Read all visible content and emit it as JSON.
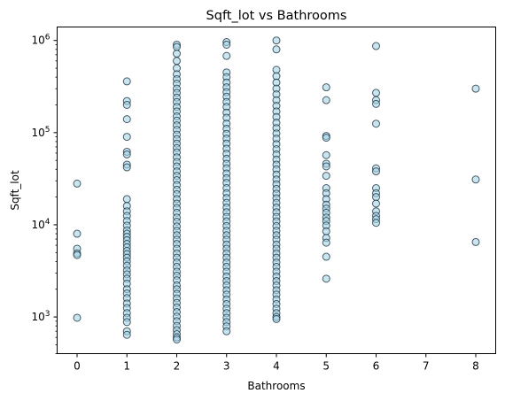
{
  "chart_data": {
    "type": "scatter",
    "title": "Sqft_lot vs Bathrooms",
    "xlabel": "Bathrooms",
    "ylabel": "Sqft_lot",
    "xlim": [
      -0.4,
      8.4
    ],
    "ylim": [
      400,
      1400000
    ],
    "yscale": "log",
    "xticks": [
      0,
      1,
      2,
      3,
      4,
      5,
      6,
      7,
      8
    ],
    "yticks": [
      {
        "value": 1000,
        "base": "10",
        "exp": "3"
      },
      {
        "value": 10000,
        "base": "10",
        "exp": "4"
      },
      {
        "value": 100000,
        "base": "10",
        "exp": "5"
      },
      {
        "value": 1000000,
        "base": "10",
        "exp": "6"
      }
    ],
    "grid": false,
    "marker_face_color": "#a6d2e6",
    "marker_edge_color": "#0e2a36",
    "points": [
      {
        "x": 0,
        "y": 28000
      },
      {
        "x": 0,
        "y": 8000
      },
      {
        "x": 0,
        "y": 5500
      },
      {
        "x": 0,
        "y": 4900
      },
      {
        "x": 0,
        "y": 4700
      },
      {
        "x": 0,
        "y": 980
      },
      {
        "x": 1,
        "y": 360000
      },
      {
        "x": 1,
        "y": 220000
      },
      {
        "x": 1,
        "y": 200000
      },
      {
        "x": 1,
        "y": 140000
      },
      {
        "x": 1,
        "y": 90000
      },
      {
        "x": 1,
        "y": 62000
      },
      {
        "x": 1,
        "y": 58000
      },
      {
        "x": 1,
        "y": 45000
      },
      {
        "x": 1,
        "y": 42000
      },
      {
        "x": 1,
        "y": 19000
      },
      {
        "x": 1,
        "y": 16000
      },
      {
        "x": 1,
        "y": 14000
      },
      {
        "x": 1,
        "y": 12500
      },
      {
        "x": 1,
        "y": 11000
      },
      {
        "x": 1,
        "y": 9800
      },
      {
        "x": 1,
        "y": 8700
      },
      {
        "x": 1,
        "y": 8000
      },
      {
        "x": 1,
        "y": 7400
      },
      {
        "x": 1,
        "y": 6800
      },
      {
        "x": 1,
        "y": 6200
      },
      {
        "x": 1,
        "y": 5700
      },
      {
        "x": 1,
        "y": 5200
      },
      {
        "x": 1,
        "y": 4800
      },
      {
        "x": 1,
        "y": 4400
      },
      {
        "x": 1,
        "y": 4000
      },
      {
        "x": 1,
        "y": 3600
      },
      {
        "x": 1,
        "y": 3200
      },
      {
        "x": 1,
        "y": 2900
      },
      {
        "x": 1,
        "y": 2600
      },
      {
        "x": 1,
        "y": 2300
      },
      {
        "x": 1,
        "y": 2000
      },
      {
        "x": 1,
        "y": 1800
      },
      {
        "x": 1,
        "y": 1600
      },
      {
        "x": 1,
        "y": 1400
      },
      {
        "x": 1,
        "y": 1250
      },
      {
        "x": 1,
        "y": 1100
      },
      {
        "x": 1,
        "y": 980
      },
      {
        "x": 1,
        "y": 880
      },
      {
        "x": 1,
        "y": 700
      },
      {
        "x": 1,
        "y": 640
      },
      {
        "x": 2,
        "y": 900000
      },
      {
        "x": 2,
        "y": 850000
      },
      {
        "x": 2,
        "y": 720000
      },
      {
        "x": 2,
        "y": 600000
      },
      {
        "x": 2,
        "y": 500000
      },
      {
        "x": 2,
        "y": 430000
      },
      {
        "x": 2,
        "y": 380000
      },
      {
        "x": 2,
        "y": 340000
      },
      {
        "x": 2,
        "y": 300000
      },
      {
        "x": 2,
        "y": 270000
      },
      {
        "x": 2,
        "y": 240000
      },
      {
        "x": 2,
        "y": 215000
      },
      {
        "x": 2,
        "y": 190000
      },
      {
        "x": 2,
        "y": 170000
      },
      {
        "x": 2,
        "y": 150000
      },
      {
        "x": 2,
        "y": 135000
      },
      {
        "x": 2,
        "y": 120000
      },
      {
        "x": 2,
        "y": 107000
      },
      {
        "x": 2,
        "y": 95000
      },
      {
        "x": 2,
        "y": 85000
      },
      {
        "x": 2,
        "y": 76000
      },
      {
        "x": 2,
        "y": 68000
      },
      {
        "x": 2,
        "y": 61000
      },
      {
        "x": 2,
        "y": 54000
      },
      {
        "x": 2,
        "y": 48000
      },
      {
        "x": 2,
        "y": 43000
      },
      {
        "x": 2,
        "y": 38000
      },
      {
        "x": 2,
        "y": 34000
      },
      {
        "x": 2,
        "y": 30500
      },
      {
        "x": 2,
        "y": 27000
      },
      {
        "x": 2,
        "y": 24000
      },
      {
        "x": 2,
        "y": 21500
      },
      {
        "x": 2,
        "y": 19000
      },
      {
        "x": 2,
        "y": 17000
      },
      {
        "x": 2,
        "y": 15200
      },
      {
        "x": 2,
        "y": 13500
      },
      {
        "x": 2,
        "y": 12000
      },
      {
        "x": 2,
        "y": 10800
      },
      {
        "x": 2,
        "y": 9600
      },
      {
        "x": 2,
        "y": 8600
      },
      {
        "x": 2,
        "y": 7700
      },
      {
        "x": 2,
        "y": 6900
      },
      {
        "x": 2,
        "y": 6200
      },
      {
        "x": 2,
        "y": 5500
      },
      {
        "x": 2,
        "y": 4900
      },
      {
        "x": 2,
        "y": 4400
      },
      {
        "x": 2,
        "y": 3900
      },
      {
        "x": 2,
        "y": 3500
      },
      {
        "x": 2,
        "y": 3100
      },
      {
        "x": 2,
        "y": 2800
      },
      {
        "x": 2,
        "y": 2500
      },
      {
        "x": 2,
        "y": 2200
      },
      {
        "x": 2,
        "y": 2000
      },
      {
        "x": 2,
        "y": 1780
      },
      {
        "x": 2,
        "y": 1590
      },
      {
        "x": 2,
        "y": 1420
      },
      {
        "x": 2,
        "y": 1270
      },
      {
        "x": 2,
        "y": 1130
      },
      {
        "x": 2,
        "y": 1010
      },
      {
        "x": 2,
        "y": 900
      },
      {
        "x": 2,
        "y": 800
      },
      {
        "x": 2,
        "y": 720
      },
      {
        "x": 2,
        "y": 650
      },
      {
        "x": 2,
        "y": 600
      },
      {
        "x": 2,
        "y": 570
      },
      {
        "x": 3,
        "y": 960000
      },
      {
        "x": 3,
        "y": 900000
      },
      {
        "x": 3,
        "y": 680000
      },
      {
        "x": 3,
        "y": 450000
      },
      {
        "x": 3,
        "y": 400000
      },
      {
        "x": 3,
        "y": 350000
      },
      {
        "x": 3,
        "y": 310000
      },
      {
        "x": 3,
        "y": 275000
      },
      {
        "x": 3,
        "y": 245000
      },
      {
        "x": 3,
        "y": 215000
      },
      {
        "x": 3,
        "y": 190000
      },
      {
        "x": 3,
        "y": 165000
      },
      {
        "x": 3,
        "y": 145000
      },
      {
        "x": 3,
        "y": 125000
      },
      {
        "x": 3,
        "y": 110000
      },
      {
        "x": 3,
        "y": 97000
      },
      {
        "x": 3,
        "y": 86000
      },
      {
        "x": 3,
        "y": 76000
      },
      {
        "x": 3,
        "y": 67000
      },
      {
        "x": 3,
        "y": 59000
      },
      {
        "x": 3,
        "y": 52000
      },
      {
        "x": 3,
        "y": 46000
      },
      {
        "x": 3,
        "y": 41000
      },
      {
        "x": 3,
        "y": 36000
      },
      {
        "x": 3,
        "y": 32000
      },
      {
        "x": 3,
        "y": 28500
      },
      {
        "x": 3,
        "y": 25000
      },
      {
        "x": 3,
        "y": 22000
      },
      {
        "x": 3,
        "y": 19500
      },
      {
        "x": 3,
        "y": 17300
      },
      {
        "x": 3,
        "y": 15400
      },
      {
        "x": 3,
        "y": 13700
      },
      {
        "x": 3,
        "y": 12200
      },
      {
        "x": 3,
        "y": 10900
      },
      {
        "x": 3,
        "y": 9700
      },
      {
        "x": 3,
        "y": 8600
      },
      {
        "x": 3,
        "y": 7700
      },
      {
        "x": 3,
        "y": 6900
      },
      {
        "x": 3,
        "y": 6100
      },
      {
        "x": 3,
        "y": 5500
      },
      {
        "x": 3,
        "y": 4900
      },
      {
        "x": 3,
        "y": 4400
      },
      {
        "x": 3,
        "y": 3900
      },
      {
        "x": 3,
        "y": 3500
      },
      {
        "x": 3,
        "y": 3100
      },
      {
        "x": 3,
        "y": 2750
      },
      {
        "x": 3,
        "y": 2450
      },
      {
        "x": 3,
        "y": 2200
      },
      {
        "x": 3,
        "y": 1950
      },
      {
        "x": 3,
        "y": 1750
      },
      {
        "x": 3,
        "y": 1550
      },
      {
        "x": 3,
        "y": 1380
      },
      {
        "x": 3,
        "y": 1230
      },
      {
        "x": 3,
        "y": 1100
      },
      {
        "x": 3,
        "y": 980
      },
      {
        "x": 3,
        "y": 880
      },
      {
        "x": 3,
        "y": 790
      },
      {
        "x": 3,
        "y": 700
      },
      {
        "x": 4,
        "y": 1000000
      },
      {
        "x": 4,
        "y": 800000
      },
      {
        "x": 4,
        "y": 480000
      },
      {
        "x": 4,
        "y": 410000
      },
      {
        "x": 4,
        "y": 350000
      },
      {
        "x": 4,
        "y": 300000
      },
      {
        "x": 4,
        "y": 260000
      },
      {
        "x": 4,
        "y": 225000
      },
      {
        "x": 4,
        "y": 195000
      },
      {
        "x": 4,
        "y": 170000
      },
      {
        "x": 4,
        "y": 148000
      },
      {
        "x": 4,
        "y": 128000
      },
      {
        "x": 4,
        "y": 112000
      },
      {
        "x": 4,
        "y": 98000
      },
      {
        "x": 4,
        "y": 86000
      },
      {
        "x": 4,
        "y": 75000
      },
      {
        "x": 4,
        "y": 66000
      },
      {
        "x": 4,
        "y": 58000
      },
      {
        "x": 4,
        "y": 51000
      },
      {
        "x": 4,
        "y": 45000
      },
      {
        "x": 4,
        "y": 40000
      },
      {
        "x": 4,
        "y": 35000
      },
      {
        "x": 4,
        "y": 31000
      },
      {
        "x": 4,
        "y": 27500
      },
      {
        "x": 4,
        "y": 24500
      },
      {
        "x": 4,
        "y": 21800
      },
      {
        "x": 4,
        "y": 19400
      },
      {
        "x": 4,
        "y": 17300
      },
      {
        "x": 4,
        "y": 15400
      },
      {
        "x": 4,
        "y": 13700
      },
      {
        "x": 4,
        "y": 12200
      },
      {
        "x": 4,
        "y": 10900
      },
      {
        "x": 4,
        "y": 9700
      },
      {
        "x": 4,
        "y": 8600
      },
      {
        "x": 4,
        "y": 7700
      },
      {
        "x": 4,
        "y": 6900
      },
      {
        "x": 4,
        "y": 6100
      },
      {
        "x": 4,
        "y": 5500
      },
      {
        "x": 4,
        "y": 4900
      },
      {
        "x": 4,
        "y": 4400
      },
      {
        "x": 4,
        "y": 3900
      },
      {
        "x": 4,
        "y": 3500
      },
      {
        "x": 4,
        "y": 3100
      },
      {
        "x": 4,
        "y": 2750
      },
      {
        "x": 4,
        "y": 2450
      },
      {
        "x": 4,
        "y": 2200
      },
      {
        "x": 4,
        "y": 1950
      },
      {
        "x": 4,
        "y": 1750
      },
      {
        "x": 4,
        "y": 1550
      },
      {
        "x": 4,
        "y": 1380
      },
      {
        "x": 4,
        "y": 1230
      },
      {
        "x": 4,
        "y": 1100
      },
      {
        "x": 4,
        "y": 1000
      },
      {
        "x": 4,
        "y": 950
      },
      {
        "x": 5,
        "y": 310000
      },
      {
        "x": 5,
        "y": 225000
      },
      {
        "x": 5,
        "y": 92000
      },
      {
        "x": 5,
        "y": 88000
      },
      {
        "x": 5,
        "y": 57000
      },
      {
        "x": 5,
        "y": 46000
      },
      {
        "x": 5,
        "y": 43000
      },
      {
        "x": 5,
        "y": 34000
      },
      {
        "x": 5,
        "y": 25000
      },
      {
        "x": 5,
        "y": 22000
      },
      {
        "x": 5,
        "y": 19000
      },
      {
        "x": 5,
        "y": 16500
      },
      {
        "x": 5,
        "y": 15000
      },
      {
        "x": 5,
        "y": 13500
      },
      {
        "x": 5,
        "y": 12000
      },
      {
        "x": 5,
        "y": 11000
      },
      {
        "x": 5,
        "y": 9800
      },
      {
        "x": 5,
        "y": 8500
      },
      {
        "x": 5,
        "y": 7200
      },
      {
        "x": 5,
        "y": 6400
      },
      {
        "x": 5,
        "y": 4500
      },
      {
        "x": 5,
        "y": 2600
      },
      {
        "x": 6,
        "y": 870000
      },
      {
        "x": 6,
        "y": 270000
      },
      {
        "x": 6,
        "y": 225000
      },
      {
        "x": 6,
        "y": 205000
      },
      {
        "x": 6,
        "y": 125000
      },
      {
        "x": 6,
        "y": 41000
      },
      {
        "x": 6,
        "y": 38000
      },
      {
        "x": 6,
        "y": 25000
      },
      {
        "x": 6,
        "y": 22000
      },
      {
        "x": 6,
        "y": 20000
      },
      {
        "x": 6,
        "y": 17000
      },
      {
        "x": 6,
        "y": 14000
      },
      {
        "x": 6,
        "y": 12500
      },
      {
        "x": 6,
        "y": 11500
      },
      {
        "x": 6,
        "y": 10500
      },
      {
        "x": 8,
        "y": 300000
      },
      {
        "x": 8,
        "y": 31000
      },
      {
        "x": 8,
        "y": 6500
      }
    ]
  }
}
